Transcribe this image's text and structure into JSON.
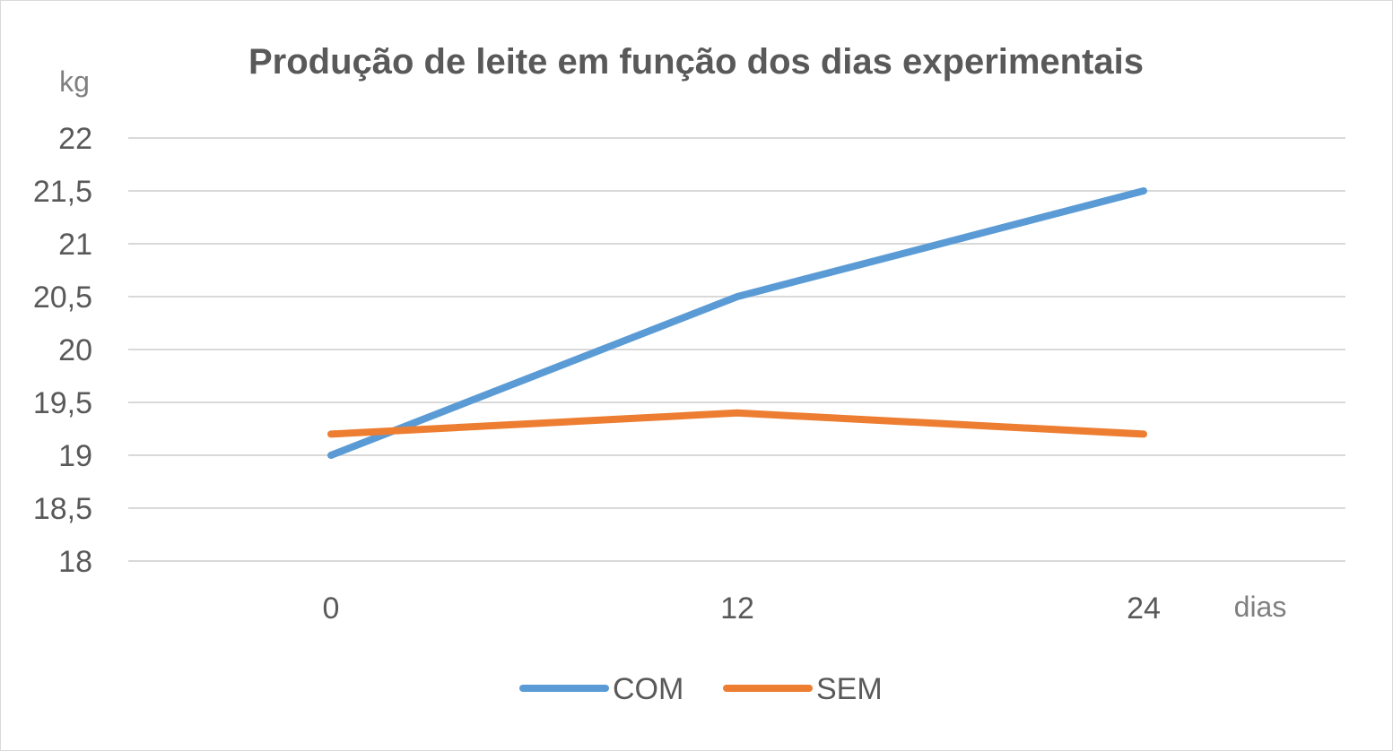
{
  "chart_data": {
    "type": "line",
    "title": "Produção de leite em função dos dias experimentais",
    "ylabel": "kg",
    "xlabel": "dias",
    "categories": [
      "0",
      "12",
      "24"
    ],
    "y_ticks": [
      "18",
      "18,5",
      "19",
      "19,5",
      "20",
      "20,5",
      "21",
      "21,5",
      "22"
    ],
    "ylim": [
      18,
      22
    ],
    "grid": true,
    "legend_position": "bottom",
    "series": [
      {
        "name": "COM",
        "values": [
          19.0,
          20.5,
          21.5
        ],
        "color": "#5b9bd5"
      },
      {
        "name": "SEM",
        "values": [
          19.2,
          19.4,
          19.2
        ],
        "color": "#ed7d31"
      }
    ]
  }
}
